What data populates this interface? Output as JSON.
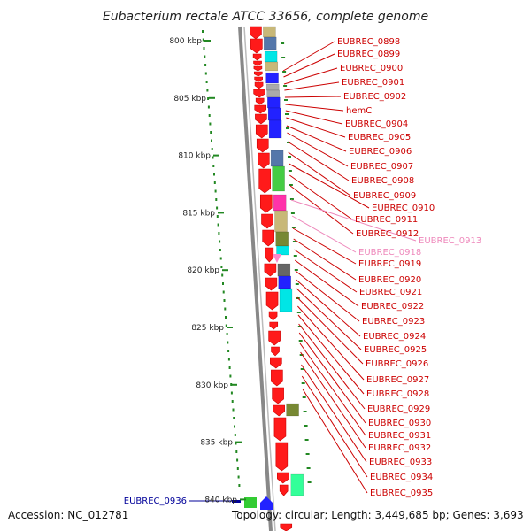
{
  "title": "Eubacterium rectale ATCC 33656, complete genome",
  "footer": {
    "accession": "Accession: NC_012781",
    "summary": "Topology: circular; Length: 3,449,685 bp; Genes: 3,693"
  },
  "colors": {
    "forward_gene": "#ff1a1a",
    "reverse_palette": [
      "#2222ff",
      "#00e6e6",
      "#c8b878",
      "#44cc44",
      "#5577aa",
      "#ff33aa",
      "#778833",
      "#aaaaaa",
      "#33ff99",
      "#666666"
    ],
    "label_default": "#cc0000",
    "label_pink": "#ee88bb",
    "label_blue": "#000099",
    "backbone": "#888888",
    "tick_dot": "#228822"
  },
  "scale_ticks": [
    "800 kbp",
    "805 kbp",
    "810 kbp",
    "815 kbp",
    "820 kbp",
    "825 kbp",
    "830 kbp",
    "835 kbp",
    "840 kbp"
  ],
  "gene_labels": [
    {
      "text": "EUBREC_0898",
      "style": "default"
    },
    {
      "text": "EUBREC_0899",
      "style": "default"
    },
    {
      "text": "EUBREC_0900",
      "style": "default"
    },
    {
      "text": "EUBREC_0901",
      "style": "default"
    },
    {
      "text": "EUBREC_0902",
      "style": "default"
    },
    {
      "text": "hemC",
      "style": "default"
    },
    {
      "text": "EUBREC_0904",
      "style": "default"
    },
    {
      "text": "EUBREC_0905",
      "style": "default"
    },
    {
      "text": "EUBREC_0906",
      "style": "default"
    },
    {
      "text": "EUBREC_0907",
      "style": "default"
    },
    {
      "text": "EUBREC_0908",
      "style": "default"
    },
    {
      "text": "EUBREC_0909",
      "style": "default"
    },
    {
      "text": "EUBREC_0910",
      "style": "default"
    },
    {
      "text": "EUBREC_0911",
      "style": "default"
    },
    {
      "text": "EUBREC_0912",
      "style": "default"
    },
    {
      "text": "EUBREC_0913",
      "style": "pink"
    },
    {
      "text": "EUBREC_0918",
      "style": "pink"
    },
    {
      "text": "EUBREC_0919",
      "style": "default"
    },
    {
      "text": "EUBREC_0920",
      "style": "default"
    },
    {
      "text": "EUBREC_0921",
      "style": "default"
    },
    {
      "text": "EUBREC_0922",
      "style": "default"
    },
    {
      "text": "EUBREC_0923",
      "style": "default"
    },
    {
      "text": "EUBREC_0924",
      "style": "default"
    },
    {
      "text": "EUBREC_0925",
      "style": "default"
    },
    {
      "text": "EUBREC_0926",
      "style": "default"
    },
    {
      "text": "EUBREC_0927",
      "style": "default"
    },
    {
      "text": "EUBREC_0928",
      "style": "default"
    },
    {
      "text": "EUBREC_0929",
      "style": "default"
    },
    {
      "text": "EUBREC_0930",
      "style": "default"
    },
    {
      "text": "EUBREC_0931",
      "style": "default"
    },
    {
      "text": "EUBREC_0932",
      "style": "default"
    },
    {
      "text": "EUBREC_0933",
      "style": "default"
    },
    {
      "text": "EUBREC_0934",
      "style": "default"
    },
    {
      "text": "EUBREC_0935",
      "style": "default"
    },
    {
      "text": "EUBREC_0936",
      "style": "blue"
    }
  ]
}
